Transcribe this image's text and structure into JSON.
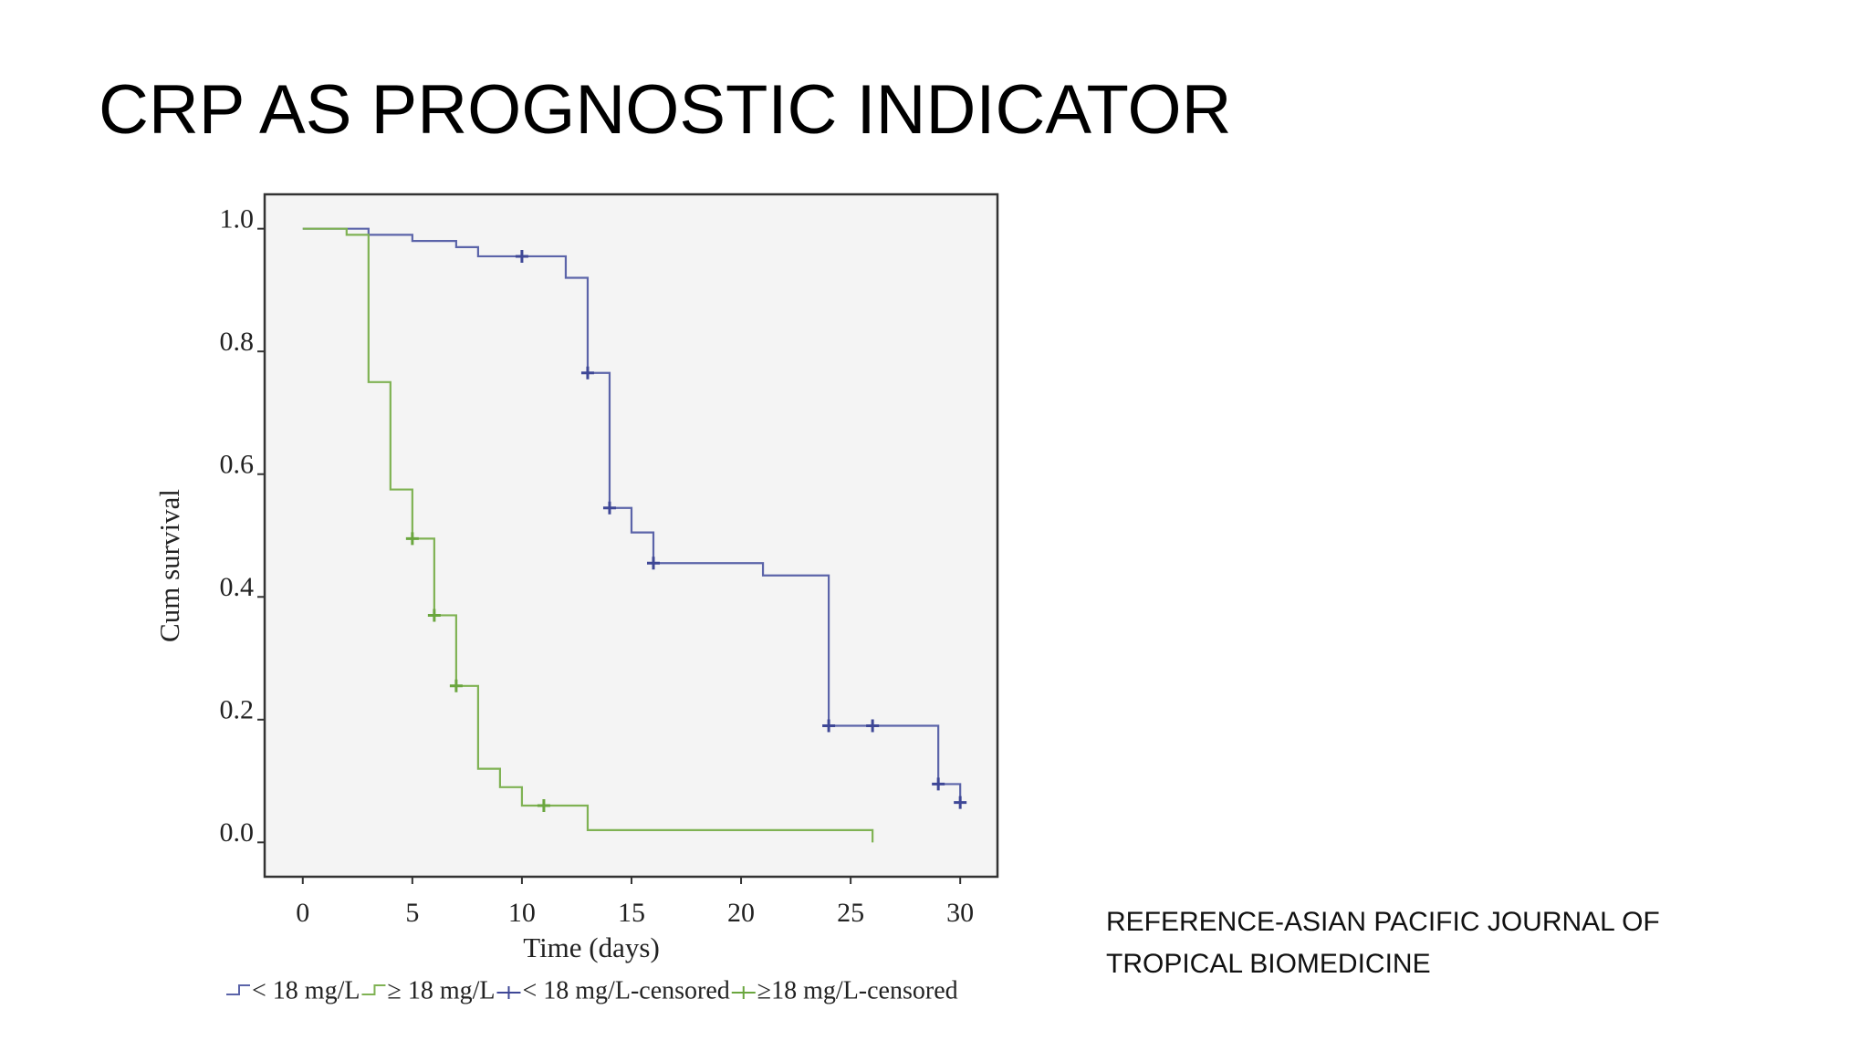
{
  "title": "CRP AS PROGNOSTIC INDICATOR",
  "reference": "REFERENCE-ASIAN PACIFIC JOURNAL OF TROPICAL BIOMEDICINE",
  "chart_data": {
    "type": "step",
    "x_label": "Time (days)",
    "y_label": "Cum survival",
    "xlim": [
      -1.74,
      31.7
    ],
    "xticks": [
      0,
      5,
      10,
      15,
      20,
      25,
      30
    ],
    "ylim": [
      -0.056,
      1.056
    ],
    "yticks": [
      {
        "value": 0,
        "label": "0.0"
      },
      0.2,
      0.4,
      0.6,
      0.8,
      {
        "value": 1,
        "label": "1.0"
      }
    ],
    "series": [
      {
        "name": "< 18 mg/L",
        "color": "#5b64a9",
        "style": "step",
        "x": [
          0,
          3,
          5,
          7,
          8,
          12,
          13,
          14,
          15,
          16,
          21,
          24,
          29,
          30
        ],
        "values": [
          1,
          0.99,
          0.98,
          0.97,
          0.955,
          0.92,
          0.765,
          0.545,
          0.505,
          0.455,
          0.435,
          0.19,
          0.095,
          0.065
        ]
      },
      {
        "name": "≥ 18 mg/L",
        "color": "#7fb253",
        "style": "step",
        "x": [
          0,
          2,
          3,
          4,
          5,
          6,
          7,
          8,
          9,
          10,
          13,
          26
        ],
        "values": [
          1,
          0.99,
          0.75,
          0.575,
          0.495,
          0.37,
          0.255,
          0.12,
          0.09,
          0.06,
          0.02,
          0
        ]
      },
      {
        "name": "< 18 mg/L-censored",
        "color": "#3e4796",
        "style": "censor",
        "x": [
          10,
          13,
          14,
          16,
          24,
          26,
          29,
          30
        ],
        "values": [
          0.955,
          0.765,
          0.545,
          0.455,
          0.19,
          0.19,
          0.095,
          0.065
        ]
      },
      {
        "name": "≥18 mg/L-censored",
        "color": "#6aa63e",
        "style": "censor",
        "x": [
          5,
          6,
          7,
          11
        ],
        "values": [
          0.495,
          0.37,
          0.255,
          0.06
        ]
      }
    ]
  }
}
